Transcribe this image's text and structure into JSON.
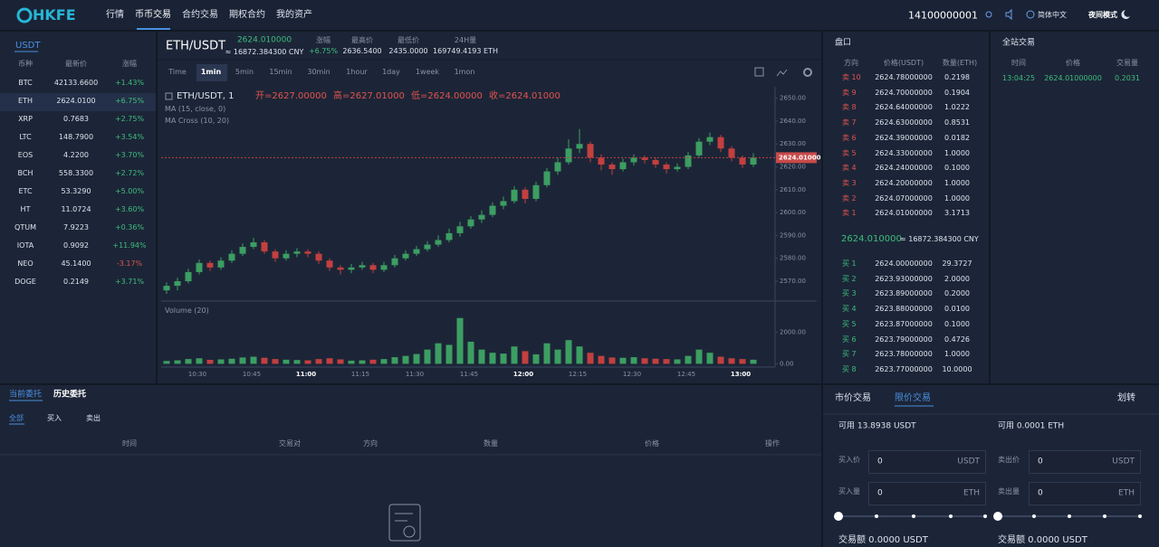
{
  "header": {
    "logo": "HKFE",
    "nav": [
      "行情",
      "币币交易",
      "合约交易",
      "期权合约",
      "我的资产"
    ],
    "account": "14100000001",
    "language": "简体中文",
    "mode": "夜间模式"
  },
  "market": {
    "tab": "USDT",
    "columns": [
      "币种",
      "最新价",
      "涨幅"
    ],
    "rows": [
      {
        "symbol": "BTC",
        "price": "42133.6600",
        "change": "+1.43%"
      },
      {
        "symbol": "ETH",
        "price": "2624.0100",
        "change": "+6.75%"
      },
      {
        "symbol": "XRP",
        "price": "0.7683",
        "change": "+2.75%"
      },
      {
        "symbol": "LTC",
        "price": "148.7900",
        "change": "+3.54%"
      },
      {
        "symbol": "EOS",
        "price": "4.2200",
        "change": "+3.70%"
      },
      {
        "symbol": "BCH",
        "price": "558.3300",
        "change": "+2.72%"
      },
      {
        "symbol": "ETC",
        "price": "53.3290",
        "change": "+5.00%"
      },
      {
        "symbol": "HT",
        "price": "11.0724",
        "change": "+3.60%"
      },
      {
        "symbol": "QTUM",
        "price": "7.9223",
        "change": "+0.36%"
      },
      {
        "symbol": "IOTA",
        "price": "0.9092",
        "change": "+11.94%"
      },
      {
        "symbol": "NEO",
        "price": "45.1400",
        "change": "-3.17%"
      },
      {
        "symbol": "DOGE",
        "price": "0.2149",
        "change": "+3.71%"
      }
    ]
  },
  "ticker": {
    "pair": "ETH/USDT",
    "price": "2624.010000",
    "cny": "≈ 16872.384300 CNY",
    "stats": [
      {
        "label": "涨幅",
        "value": "+6.75%"
      },
      {
        "label": "最高价",
        "value": "2636.5400"
      },
      {
        "label": "最低价",
        "value": "2435.0000"
      },
      {
        "label": "24H量",
        "value": "169749.4193 ETH"
      }
    ]
  },
  "kline": {
    "intervals": [
      "Time",
      "1min",
      "5min",
      "15min",
      "30min",
      "1hour",
      "1day",
      "1week",
      "1mon"
    ],
    "legend": "ETH/USDT, 1",
    "ohlc": [
      "开=2627.00000",
      "高=2627.01000",
      "低=2624.00000",
      "收=2624.01000"
    ],
    "indicators": [
      "MA (15, close, 0)",
      "MA Cross (10, 20)"
    ],
    "volume_label": "Volume (20)",
    "up_color": "#3c9e62",
    "down_color": "#c2403f",
    "ylim": [
      2562.5,
      2655
    ],
    "yticks": [
      {
        "value": 2570,
        "label": "2570.00"
      },
      {
        "value": 2580,
        "label": "2580.00"
      },
      {
        "value": 2590,
        "label": "2590.00"
      },
      {
        "value": 2600,
        "label": "2600.00"
      },
      {
        "value": 2610,
        "label": "2610.00"
      },
      {
        "value": 2620,
        "label": "2620.00"
      },
      {
        "value": 2630,
        "label": "2630.00"
      },
      {
        "value": 2640,
        "label": "2640.00"
      },
      {
        "value": 2650,
        "label": "2650.00"
      }
    ],
    "last_price": {
      "value": 2624.01,
      "label": "2624.01000"
    },
    "vlim": [
      -150,
      3000
    ],
    "vticks": [
      {
        "value": 0,
        "label": "0.00"
      },
      {
        "value": 2000,
        "label": "2000.00"
      }
    ],
    "time_ticks": [
      "10:30",
      "10:45",
      "11:00",
      "11:15",
      "11:30",
      "11:45",
      "12:00",
      "12:15",
      "12:30",
      "12:45",
      "13:00"
    ],
    "candles": [
      [
        2566,
        2569.5,
        2564.5,
        2568
      ],
      [
        2568,
        2571.5,
        2566,
        2570
      ],
      [
        2570,
        2575.5,
        2569,
        2574
      ],
      [
        2574,
        2579.5,
        2573,
        2578
      ],
      [
        2578,
        2579,
        2574.5,
        2576
      ],
      [
        2576,
        2580.5,
        2575,
        2579
      ],
      [
        2579,
        2583.5,
        2578,
        2582
      ],
      [
        2582,
        2586.5,
        2581,
        2585
      ],
      [
        2585,
        2589,
        2584,
        2587
      ],
      [
        2587,
        2588,
        2582,
        2583
      ],
      [
        2583,
        2584,
        2578.5,
        2580
      ],
      [
        2580,
        2583.5,
        2579,
        2582
      ],
      [
        2582,
        2584.5,
        2580.5,
        2583
      ],
      [
        2583,
        2584,
        2580.5,
        2582
      ],
      [
        2582,
        2583,
        2577.5,
        2579
      ],
      [
        2579,
        2580,
        2574.5,
        2576
      ],
      [
        2576,
        2577,
        2573,
        2575
      ],
      [
        2575,
        2577.5,
        2573.5,
        2576
      ],
      [
        2576,
        2578.5,
        2575,
        2577
      ],
      [
        2577,
        2578,
        2573.5,
        2575
      ],
      [
        2575,
        2578.5,
        2574,
        2577
      ],
      [
        2577,
        2581.5,
        2576,
        2580
      ],
      [
        2580,
        2583.5,
        2579,
        2582
      ],
      [
        2582,
        2585.5,
        2581,
        2584
      ],
      [
        2584,
        2587.5,
        2583,
        2586
      ],
      [
        2586,
        2590,
        2585,
        2588
      ],
      [
        2588,
        2593,
        2587,
        2591
      ],
      [
        2591,
        2596,
        2589.5,
        2594
      ],
      [
        2594,
        2598.5,
        2593,
        2597
      ],
      [
        2597,
        2601,
        2595.5,
        2599
      ],
      [
        2599,
        2604.5,
        2598,
        2603
      ],
      [
        2603,
        2607,
        2601.5,
        2605
      ],
      [
        2605,
        2611.5,
        2604,
        2610
      ],
      [
        2610,
        2611,
        2604,
        2606
      ],
      [
        2606,
        2613.5,
        2605,
        2612
      ],
      [
        2612,
        2619.5,
        2611,
        2618
      ],
      [
        2618,
        2624,
        2616.5,
        2622
      ],
      [
        2622,
        2632,
        2621,
        2628
      ],
      [
        2628,
        2636.5,
        2626,
        2630
      ],
      [
        2630,
        2631,
        2622,
        2624
      ],
      [
        2624,
        2625.5,
        2618.5,
        2621
      ],
      [
        2621,
        2622,
        2616.5,
        2619
      ],
      [
        2619,
        2623.5,
        2618,
        2622
      ],
      [
        2622,
        2625.5,
        2620.5,
        2624
      ],
      [
        2624,
        2625,
        2621.5,
        2623
      ],
      [
        2623,
        2624,
        2619.5,
        2621
      ],
      [
        2621,
        2622,
        2617,
        2619
      ],
      [
        2619,
        2621.5,
        2618,
        2620
      ],
      [
        2620,
        2626.5,
        2619,
        2625
      ],
      [
        2625,
        2632.5,
        2624,
        2631
      ],
      [
        2631,
        2635,
        2629.5,
        2633
      ],
      [
        2633,
        2634,
        2626.5,
        2628
      ],
      [
        2628,
        2629,
        2622.5,
        2624
      ],
      [
        2624,
        2625,
        2619.5,
        2621
      ],
      [
        2621,
        2626,
        2620,
        2624.01
      ]
    ],
    "volumes": [
      180,
      220,
      300,
      350,
      250,
      280,
      320,
      400,
      450,
      380,
      300,
      260,
      240,
      220,
      300,
      350,
      280,
      200,
      220,
      260,
      300,
      420,
      500,
      620,
      900,
      1300,
      1200,
      2900,
      1400,
      900,
      700,
      650,
      1100,
      800,
      600,
      1300,
      900,
      1500,
      1100,
      700,
      500,
      400,
      380,
      420,
      350,
      320,
      300,
      280,
      500,
      900,
      700,
      450,
      350,
      300,
      260
    ]
  },
  "orderbook": {
    "title": "盘口",
    "columns": [
      "方向",
      "价格(USDT)",
      "数量(ETH)"
    ],
    "asks": [
      {
        "label": "卖 10",
        "price": "2624.78000000",
        "amount": "0.2198"
      },
      {
        "label": "卖 9",
        "price": "2624.70000000",
        "amount": "0.1904"
      },
      {
        "label": "卖 8",
        "price": "2624.64000000",
        "amount": "1.0222"
      },
      {
        "label": "卖 7",
        "price": "2624.63000000",
        "amount": "0.8531"
      },
      {
        "label": "卖 6",
        "price": "2624.39000000",
        "amount": "0.0182"
      },
      {
        "label": "卖 5",
        "price": "2624.33000000",
        "amount": "1.0000"
      },
      {
        "label": "卖 4",
        "price": "2624.24000000",
        "amount": "0.1000"
      },
      {
        "label": "卖 3",
        "price": "2624.20000000",
        "amount": "1.0000"
      },
      {
        "label": "卖 2",
        "price": "2624.07000000",
        "amount": "1.0000"
      },
      {
        "label": "卖 1",
        "price": "2624.01000000",
        "amount": "3.1713"
      }
    ],
    "mid_price": "2624.010000",
    "mid_cny": "≈ 16872.384300 CNY",
    "bids": [
      {
        "label": "买 1",
        "price": "2624.00000000",
        "amount": "29.3727"
      },
      {
        "label": "买 2",
        "price": "2623.93000000",
        "amount": "2.0000"
      },
      {
        "label": "买 3",
        "price": "2623.89000000",
        "amount": "0.2000"
      },
      {
        "label": "买 4",
        "price": "2623.88000000",
        "amount": "0.0100"
      },
      {
        "label": "买 5",
        "price": "2623.87000000",
        "amount": "0.1000"
      },
      {
        "label": "买 6",
        "price": "2623.79000000",
        "amount": "0.4726"
      },
      {
        "label": "买 7",
        "price": "2623.78000000",
        "amount": "1.0000"
      },
      {
        "label": "买 8",
        "price": "2623.77000000",
        "amount": "10.0000"
      }
    ]
  },
  "trades": {
    "title": "全站交易",
    "columns": [
      "时间",
      "价格",
      "交易量"
    ],
    "rows": [
      [
        "13:04:25",
        "2624.01000000",
        "0.2031"
      ]
    ]
  },
  "orders": {
    "tabs": [
      "当前委托",
      "历史委托"
    ],
    "filters": [
      "全部",
      "买入",
      "卖出"
    ],
    "columns": [
      "时间",
      "交易对",
      "方向",
      "数量",
      "价格",
      "操作"
    ]
  },
  "trade_form": {
    "tabs": [
      "市价交易",
      "限价交易"
    ],
    "transfer": "划转",
    "buy": {
      "available": "可用 13.8938 USDT",
      "price_label": "买入价",
      "price": "0",
      "price_unit": "USDT",
      "amount_label": "买入量",
      "amount": "0",
      "amount_unit": "ETH",
      "total": "交易额 0.0000 USDT"
    },
    "sell": {
      "available": "可用 0.0001 ETH",
      "price_label": "卖出价",
      "price": "0",
      "price_unit": "USDT",
      "amount_label": "卖出量",
      "amount": "0",
      "amount_unit": "ETH",
      "total": "交易额 0.0000 USDT"
    }
  }
}
